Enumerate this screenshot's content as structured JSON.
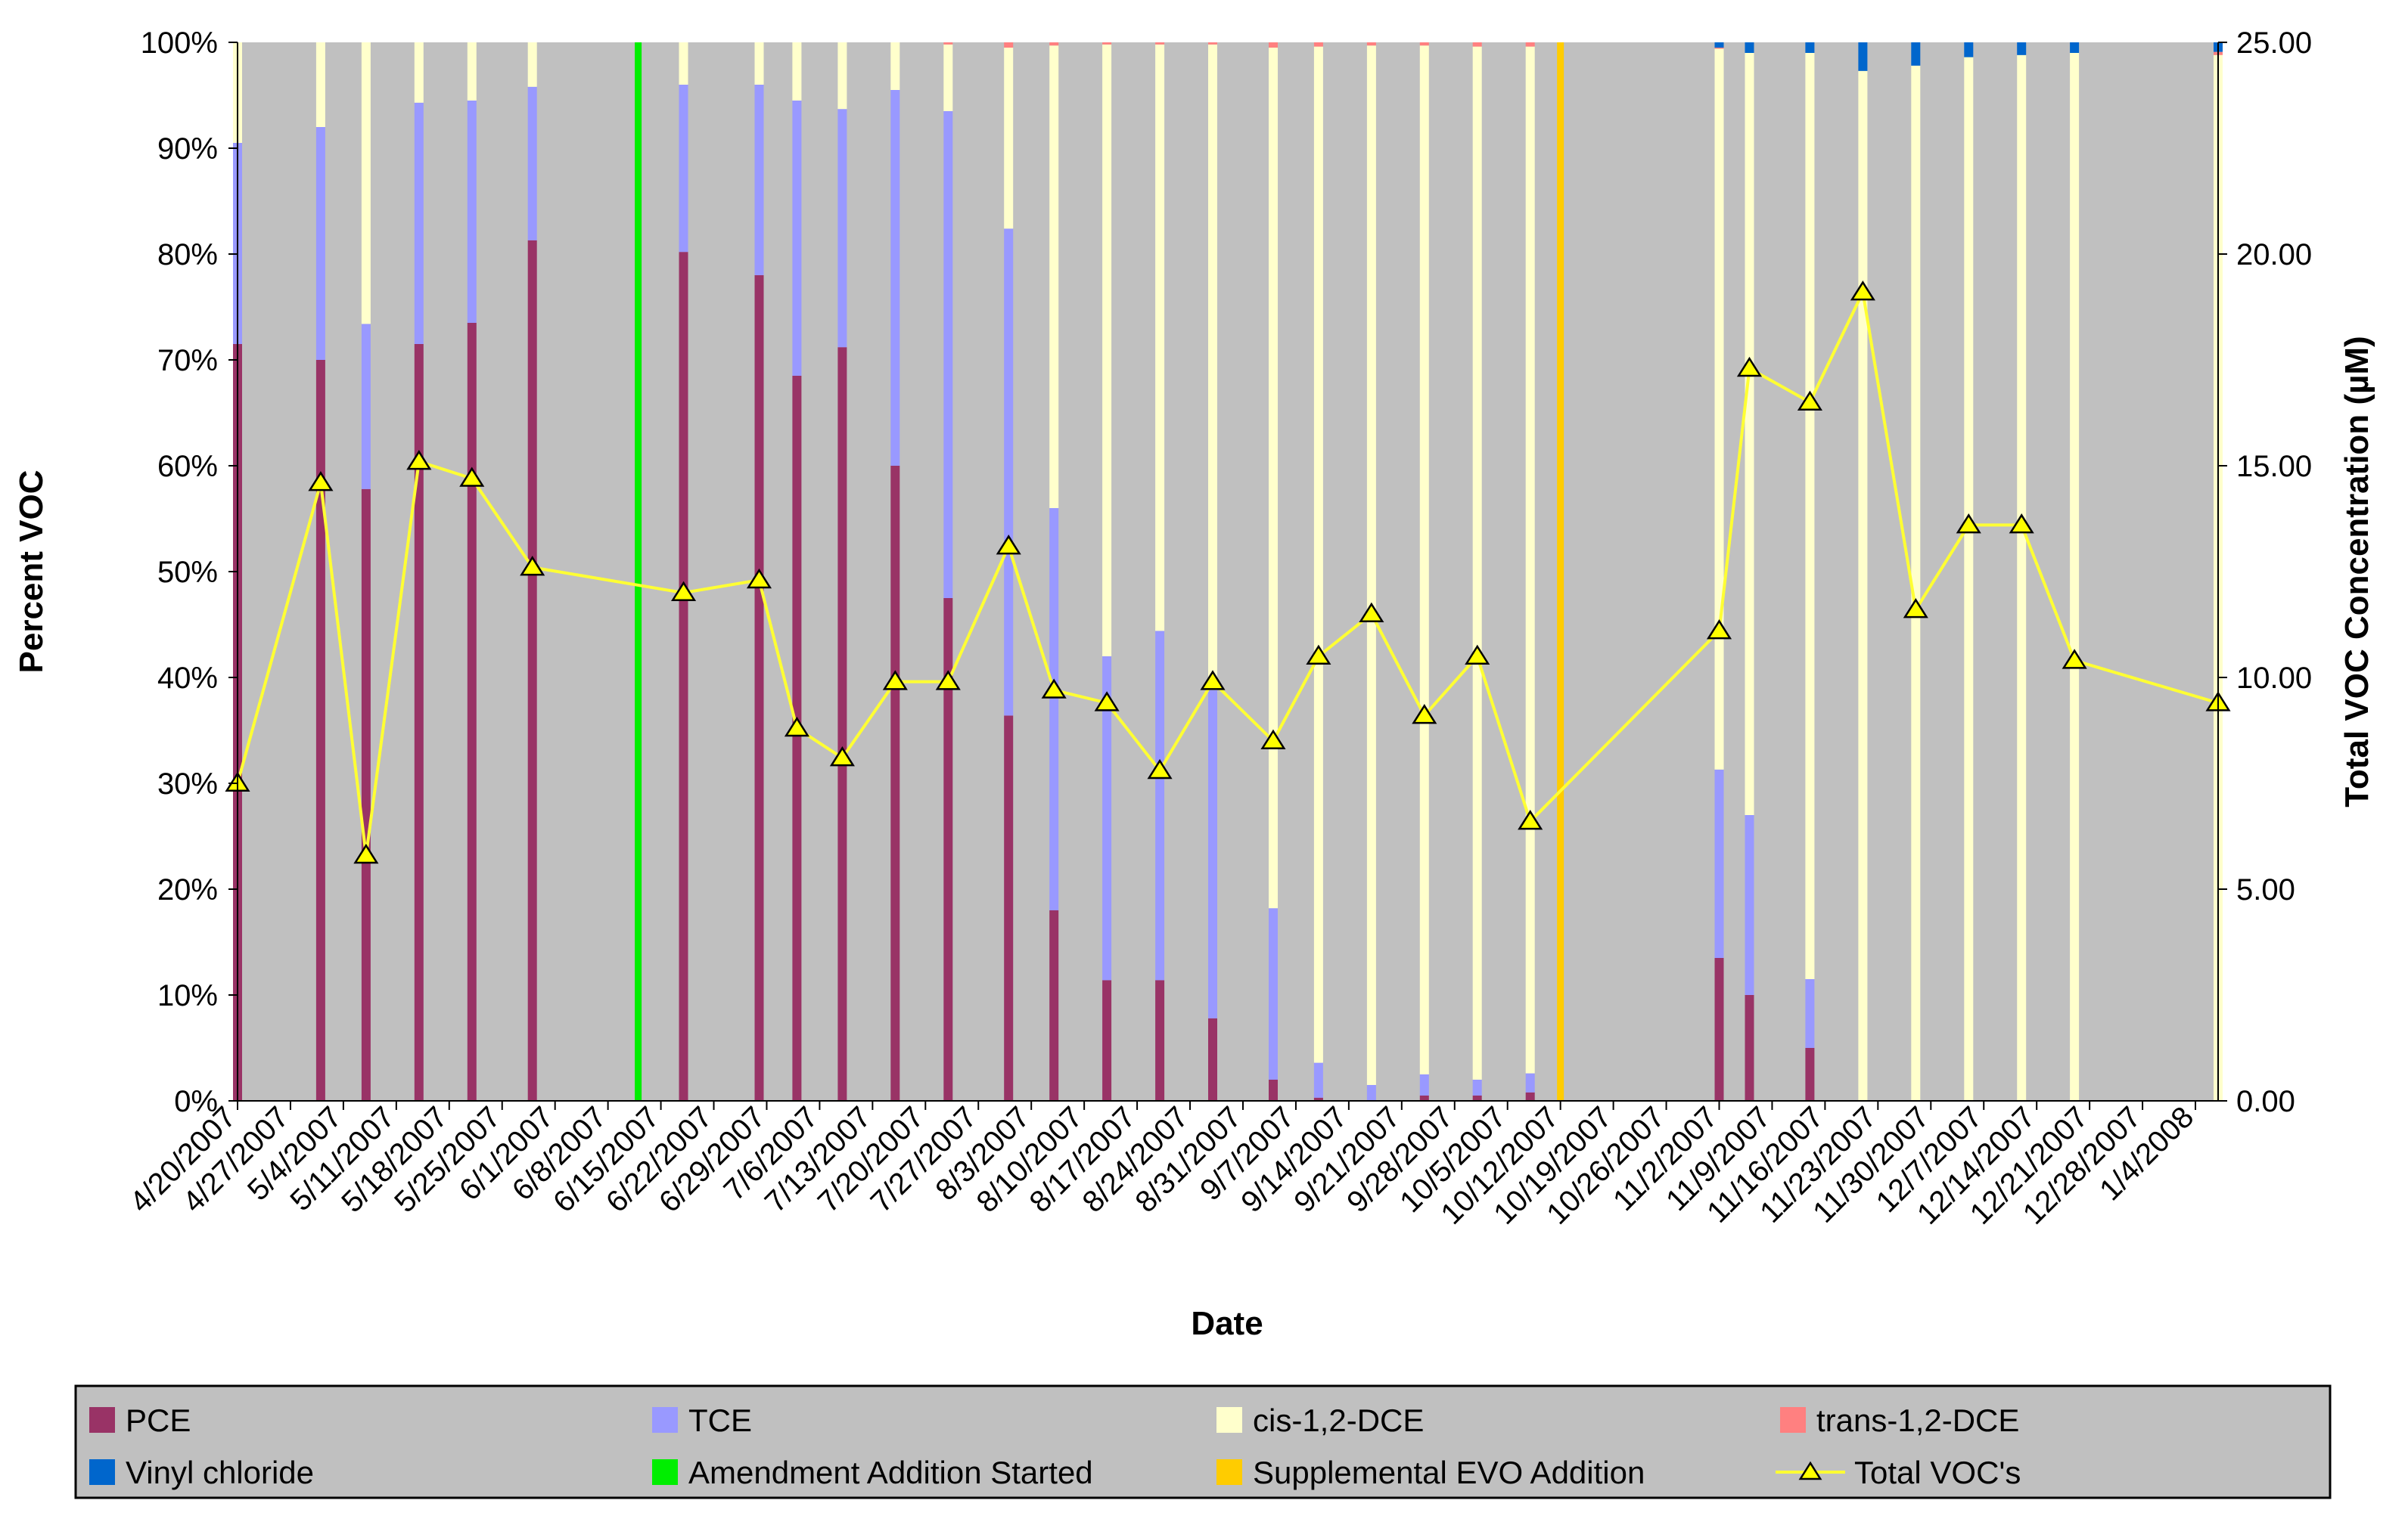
{
  "chart_data": {
    "type": "bar",
    "stacked": true,
    "xlabel": "Date",
    "ylabel": "Percent VOC",
    "y2label": "Total VOC Concentration (µM)",
    "ylim": [
      0,
      100
    ],
    "y2lim": [
      0,
      25
    ],
    "yticks": [
      "0%",
      "10%",
      "20%",
      "30%",
      "40%",
      "50%",
      "60%",
      "70%",
      "80%",
      "90%",
      "100%"
    ],
    "y2ticks": [
      "0.00",
      "5.00",
      "10.00",
      "15.00",
      "20.00",
      "25.00"
    ],
    "x_range_days": [
      0,
      262
    ],
    "x_tick_labels": [
      "4/20/2007",
      "4/27/2007",
      "5/4/2007",
      "5/11/2007",
      "5/18/2007",
      "5/25/2007",
      "6/1/2007",
      "6/8/2007",
      "6/15/2007",
      "6/22/2007",
      "6/29/2007",
      "7/6/2007",
      "7/13/2007",
      "7/20/2007",
      "7/27/2007",
      "8/3/2007",
      "8/10/2007",
      "8/17/2007",
      "8/24/2007",
      "8/31/2007",
      "9/7/2007",
      "9/14/2007",
      "9/21/2007",
      "9/28/2007",
      "10/5/2007",
      "10/12/2007",
      "10/19/2007",
      "10/26/2007",
      "11/2/2007",
      "11/9/2007",
      "11/16/2007",
      "11/23/2007",
      "11/30/2007",
      "12/7/2007",
      "12/14/2007",
      "12/21/2007",
      "12/28/2007",
      "1/4/2008"
    ],
    "series_names": [
      "PCE",
      "TCE",
      "cis-1,2-DCE",
      "trans-1,2-DCE",
      "Vinyl chloride"
    ],
    "series_colors": [
      "#993366",
      "#9999ff",
      "#ffffcc",
      "#ff8080",
      "#0066cc"
    ],
    "samples": [
      {
        "day": 0,
        "pce": 71.5,
        "tce": 19.0,
        "cis": 9.5,
        "trans": 0,
        "vc": 0,
        "total": 7.5
      },
      {
        "day": 11,
        "pce": 70.0,
        "tce": 22.0,
        "cis": 8.0,
        "trans": 0,
        "vc": 0,
        "total": 14.6
      },
      {
        "day": 17,
        "pce": 57.8,
        "tce": 15.6,
        "cis": 26.6,
        "trans": 0,
        "vc": 0,
        "total": 5.8
      },
      {
        "day": 24,
        "pce": 71.5,
        "tce": 22.8,
        "cis": 5.7,
        "trans": 0,
        "vc": 0,
        "total": 15.1
      },
      {
        "day": 31,
        "pce": 73.5,
        "tce": 21.0,
        "cis": 5.5,
        "trans": 0,
        "vc": 0,
        "total": 14.7
      },
      {
        "day": 39,
        "pce": 81.3,
        "tce": 14.5,
        "cis": 4.2,
        "trans": 0,
        "vc": 0,
        "total": 12.6
      },
      {
        "day": 59,
        "pce": 80.2,
        "tce": 15.8,
        "cis": 4.0,
        "trans": 0,
        "vc": 0,
        "total": 12.0
      },
      {
        "day": 69,
        "pce": 78.0,
        "tce": 18.0,
        "cis": 4.0,
        "trans": 0,
        "vc": 0,
        "total": 12.3
      },
      {
        "day": 74,
        "pce": 68.5,
        "tce": 26.0,
        "cis": 5.5,
        "trans": 0,
        "vc": 0,
        "total": 8.8
      },
      {
        "day": 80,
        "pce": 71.2,
        "tce": 22.5,
        "cis": 6.3,
        "trans": 0,
        "vc": 0,
        "total": 8.1
      },
      {
        "day": 87,
        "pce": 60.0,
        "tce": 35.5,
        "cis": 4.5,
        "trans": 0,
        "vc": 0,
        "total": 9.9
      },
      {
        "day": 94,
        "pce": 47.5,
        "tce": 46.0,
        "cis": 6.3,
        "trans": 0.2,
        "vc": 0,
        "total": 9.9
      },
      {
        "day": 102,
        "pce": 36.4,
        "tce": 46.0,
        "cis": 17.1,
        "trans": 0.5,
        "vc": 0,
        "total": 13.1
      },
      {
        "day": 108,
        "pce": 18.0,
        "tce": 38.0,
        "cis": 43.7,
        "trans": 0.3,
        "vc": 0,
        "total": 9.7
      },
      {
        "day": 115,
        "pce": 11.4,
        "tce": 30.6,
        "cis": 57.8,
        "trans": 0.2,
        "vc": 0,
        "total": 9.4
      },
      {
        "day": 122,
        "pce": 11.4,
        "tce": 33.0,
        "cis": 55.4,
        "trans": 0.2,
        "vc": 0,
        "total": 7.8
      },
      {
        "day": 129,
        "pce": 7.8,
        "tce": 31.0,
        "cis": 61.0,
        "trans": 0.2,
        "vc": 0,
        "total": 9.9
      },
      {
        "day": 137,
        "pce": 2.0,
        "tce": 16.2,
        "cis": 81.3,
        "trans": 0.5,
        "vc": 0,
        "total": 8.5
      },
      {
        "day": 143,
        "pce": 0.3,
        "tce": 3.3,
        "cis": 96.0,
        "trans": 0.4,
        "vc": 0,
        "total": 10.5
      },
      {
        "day": 150,
        "pce": 0,
        "tce": 1.5,
        "cis": 98.2,
        "trans": 0.3,
        "vc": 0,
        "total": 11.5
      },
      {
        "day": 157,
        "pce": 0.5,
        "tce": 2.0,
        "cis": 97.2,
        "trans": 0.3,
        "vc": 0,
        "total": 9.1
      },
      {
        "day": 164,
        "pce": 0.5,
        "tce": 1.5,
        "cis": 97.6,
        "trans": 0.4,
        "vc": 0,
        "total": 10.5
      },
      {
        "day": 171,
        "pce": 0.8,
        "tce": 1.8,
        "cis": 97.0,
        "trans": 0.4,
        "vc": 0,
        "total": 6.6
      },
      {
        "day": 196,
        "pce": 13.5,
        "tce": 17.8,
        "cis": 68.1,
        "trans": 0.1,
        "vc": 0.5,
        "total": 11.1
      },
      {
        "day": 200,
        "pce": 10.0,
        "tce": 17.0,
        "cis": 72.0,
        "trans": 0,
        "vc": 1.0,
        "total": 17.3
      },
      {
        "day": 208,
        "pce": 5.0,
        "tce": 6.5,
        "cis": 87.5,
        "trans": 0,
        "vc": 1.0,
        "total": 16.5
      },
      {
        "day": 215,
        "pce": 0,
        "tce": 0,
        "cis": 97.3,
        "trans": 0,
        "vc": 2.7,
        "total": 19.1
      },
      {
        "day": 222,
        "pce": 0,
        "tce": 0,
        "cis": 97.8,
        "trans": 0,
        "vc": 2.2,
        "total": 11.6
      },
      {
        "day": 229,
        "pce": 0,
        "tce": 0,
        "cis": 98.6,
        "trans": 0,
        "vc": 1.4,
        "total": 13.6
      },
      {
        "day": 236,
        "pce": 0,
        "tce": 0,
        "cis": 98.8,
        "trans": 0,
        "vc": 1.2,
        "total": 13.6
      },
      {
        "day": 243,
        "pce": 0,
        "tce": 0,
        "cis": 99.0,
        "trans": 0,
        "vc": 1.0,
        "total": 10.4
      },
      {
        "day": 262,
        "pce": 0,
        "tce": 0,
        "cis": 98.8,
        "trans": 0.3,
        "vc": 0.9,
        "total": 9.4
      }
    ],
    "event_lines": [
      {
        "name": "Amendment Addition Started",
        "day": 53,
        "color": "#00ee00"
      },
      {
        "name": "Supplemental EVO Addition",
        "day": 175,
        "color": "#ffcc00"
      }
    ],
    "line_series": {
      "name": "Total VOC's",
      "color": "#ffff33",
      "marker": "triangle",
      "marker_fill": "#ffff00"
    },
    "legend_position": "bottom",
    "legend": [
      {
        "label": "PCE",
        "type": "box",
        "color": "#993366"
      },
      {
        "label": "TCE",
        "type": "box",
        "color": "#9999ff"
      },
      {
        "label": "cis-1,2-DCE",
        "type": "box",
        "color": "#ffffcc"
      },
      {
        "label": "trans-1,2-DCE",
        "type": "box",
        "color": "#ff8080"
      },
      {
        "label": "Vinyl chloride",
        "type": "box",
        "color": "#0066cc"
      },
      {
        "label": "Amendment Addition Started",
        "type": "box",
        "color": "#00ee00"
      },
      {
        "label": "Supplemental EVO Addition",
        "type": "box",
        "color": "#ffcc00"
      },
      {
        "label": "Total VOC's",
        "type": "line-marker",
        "color": "#ffff33"
      }
    ],
    "plot_background": "#c0c0c0"
  }
}
